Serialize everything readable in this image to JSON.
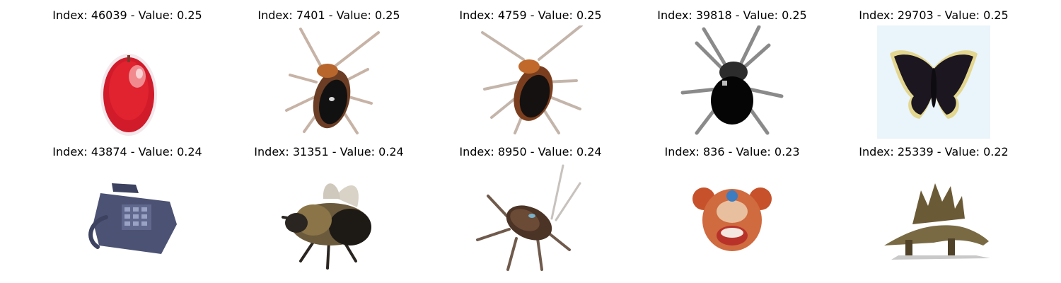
{
  "figure": {
    "panels": [
      {
        "title": "Index: 46039 - Value: 0.25",
        "subject": "apple",
        "index": 46039,
        "value": 0.25
      },
      {
        "title": "Index: 7401 - Value: 0.25",
        "subject": "cockroach",
        "index": 7401,
        "value": 0.25
      },
      {
        "title": "Index: 4759 - Value: 0.25",
        "subject": "cockroach",
        "index": 4759,
        "value": 0.25
      },
      {
        "title": "Index: 39818 - Value: 0.25",
        "subject": "spider",
        "index": 39818,
        "value": 0.25
      },
      {
        "title": "Index: 29703 - Value: 0.25",
        "subject": "butterfly",
        "index": 29703,
        "value": 0.25
      },
      {
        "title": "Index: 43874 - Value: 0.24",
        "subject": "telephone",
        "index": 43874,
        "value": 0.24
      },
      {
        "title": "Index: 31351 - Value: 0.24",
        "subject": "bee",
        "index": 31351,
        "value": 0.24
      },
      {
        "title": "Index: 8950 - Value: 0.24",
        "subject": "cockroach",
        "index": 8950,
        "value": 0.24
      },
      {
        "title": "Index: 836 - Value: 0.23",
        "subject": "crab",
        "index": 836,
        "value": 0.23
      },
      {
        "title": "Index: 25339 - Value: 0.22",
        "subject": "dinosaur",
        "index": 25339,
        "value": 0.22
      }
    ]
  }
}
